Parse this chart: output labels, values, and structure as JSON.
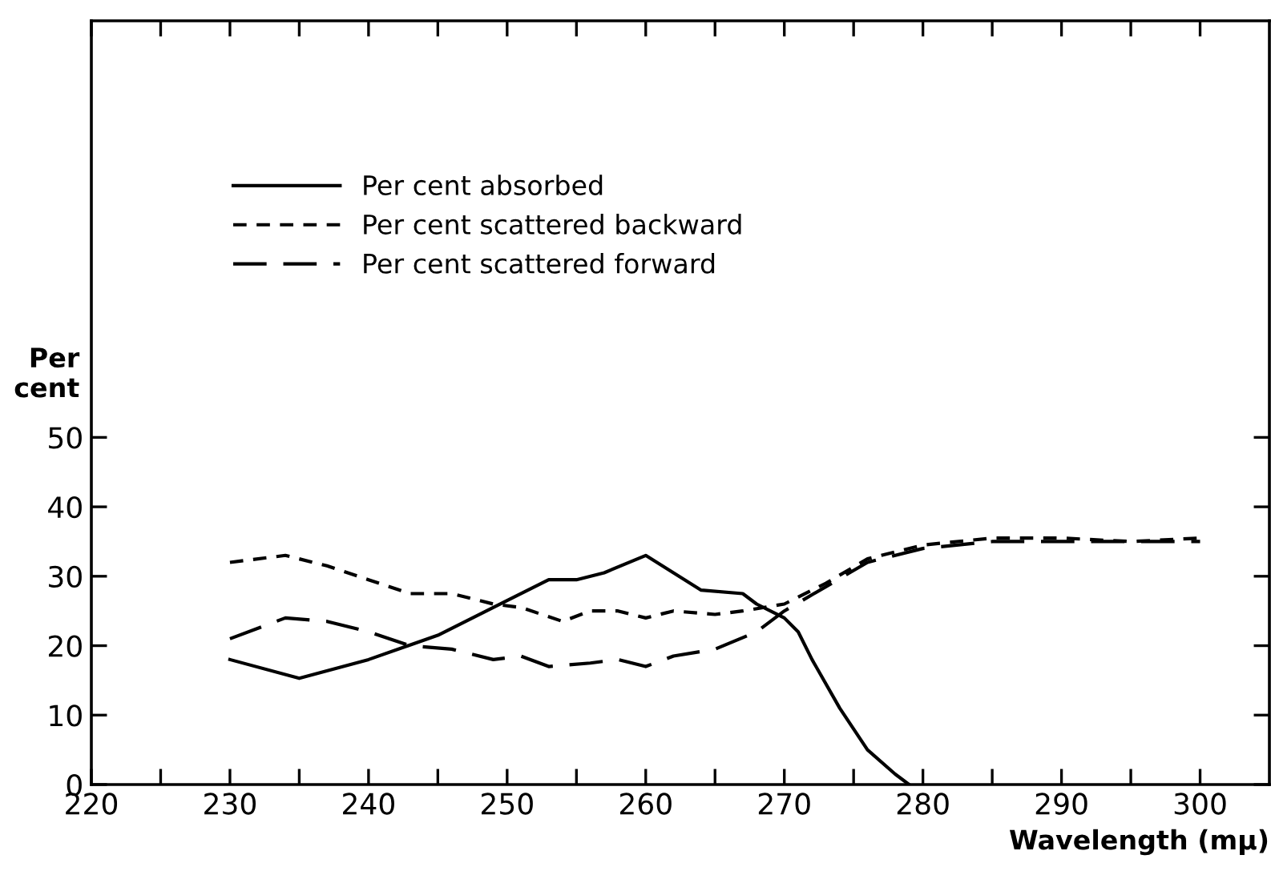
{
  "chart_data": {
    "type": "line",
    "xlabel": "Wavelength (mμ)",
    "ylabel": "Per\ncent",
    "xlim": [
      220,
      305
    ],
    "ylim": [
      0,
      110
    ],
    "xticks": [
      220,
      {
        "value": 225,
        "label": null
      },
      230,
      {
        "value": 235,
        "label": null
      },
      240,
      {
        "value": 245,
        "label": null
      },
      250,
      {
        "value": 255,
        "label": null
      },
      260,
      {
        "value": 265,
        "label": null
      },
      270,
      {
        "value": 275,
        "label": null
      },
      280,
      {
        "value": 285,
        "label": null
      },
      290,
      {
        "value": 295,
        "label": null
      },
      300
    ],
    "yticks": [
      0,
      10,
      20,
      30,
      40,
      50
    ],
    "grid": false,
    "legend": "top left",
    "marker": "none",
    "series": [
      {
        "name": "Per cent absorbed",
        "color": "#000000",
        "line_style": "solid",
        "x": [
          230,
          235,
          240,
          245,
          250,
          253,
          255,
          257,
          260,
          262,
          264,
          267,
          268,
          270,
          271,
          272,
          274,
          276,
          278,
          279
        ],
        "values": [
          18,
          15.3,
          18,
          21.5,
          26.5,
          29.5,
          29.5,
          30.5,
          33,
          30.5,
          28,
          27.5,
          26,
          24,
          22,
          18,
          11,
          5,
          1.5,
          0
        ]
      },
      {
        "name": "Per cent scattered backward",
        "color": "#000000",
        "line_style": "dashed",
        "x": [
          230,
          234,
          237,
          240,
          243,
          246,
          249,
          251,
          254,
          256,
          258,
          260,
          262,
          265,
          267,
          270,
          273,
          276,
          280,
          285,
          290,
          295,
          300
        ],
        "values": [
          32,
          33,
          31.5,
          29.5,
          27.5,
          27.5,
          26,
          25.5,
          23.5,
          25,
          25,
          24,
          25,
          24.5,
          25,
          26,
          29,
          32.5,
          34.5,
          35.5,
          35.5,
          35,
          35.5
        ]
      },
      {
        "name": "Per cent scattered forward",
        "color": "#000000",
        "line_style": "longdash",
        "x": [
          230,
          234,
          237,
          240,
          243,
          246,
          249,
          251,
          253,
          256,
          258,
          260,
          262,
          265,
          268,
          270,
          273,
          276,
          280,
          285,
          290,
          295,
          300
        ],
        "values": [
          21,
          24,
          23.5,
          22,
          20,
          19.5,
          18,
          18.5,
          17,
          17.5,
          18,
          17,
          18.5,
          19.5,
          22,
          25,
          28.5,
          32,
          34,
          35,
          35,
          35,
          35
        ]
      }
    ]
  }
}
